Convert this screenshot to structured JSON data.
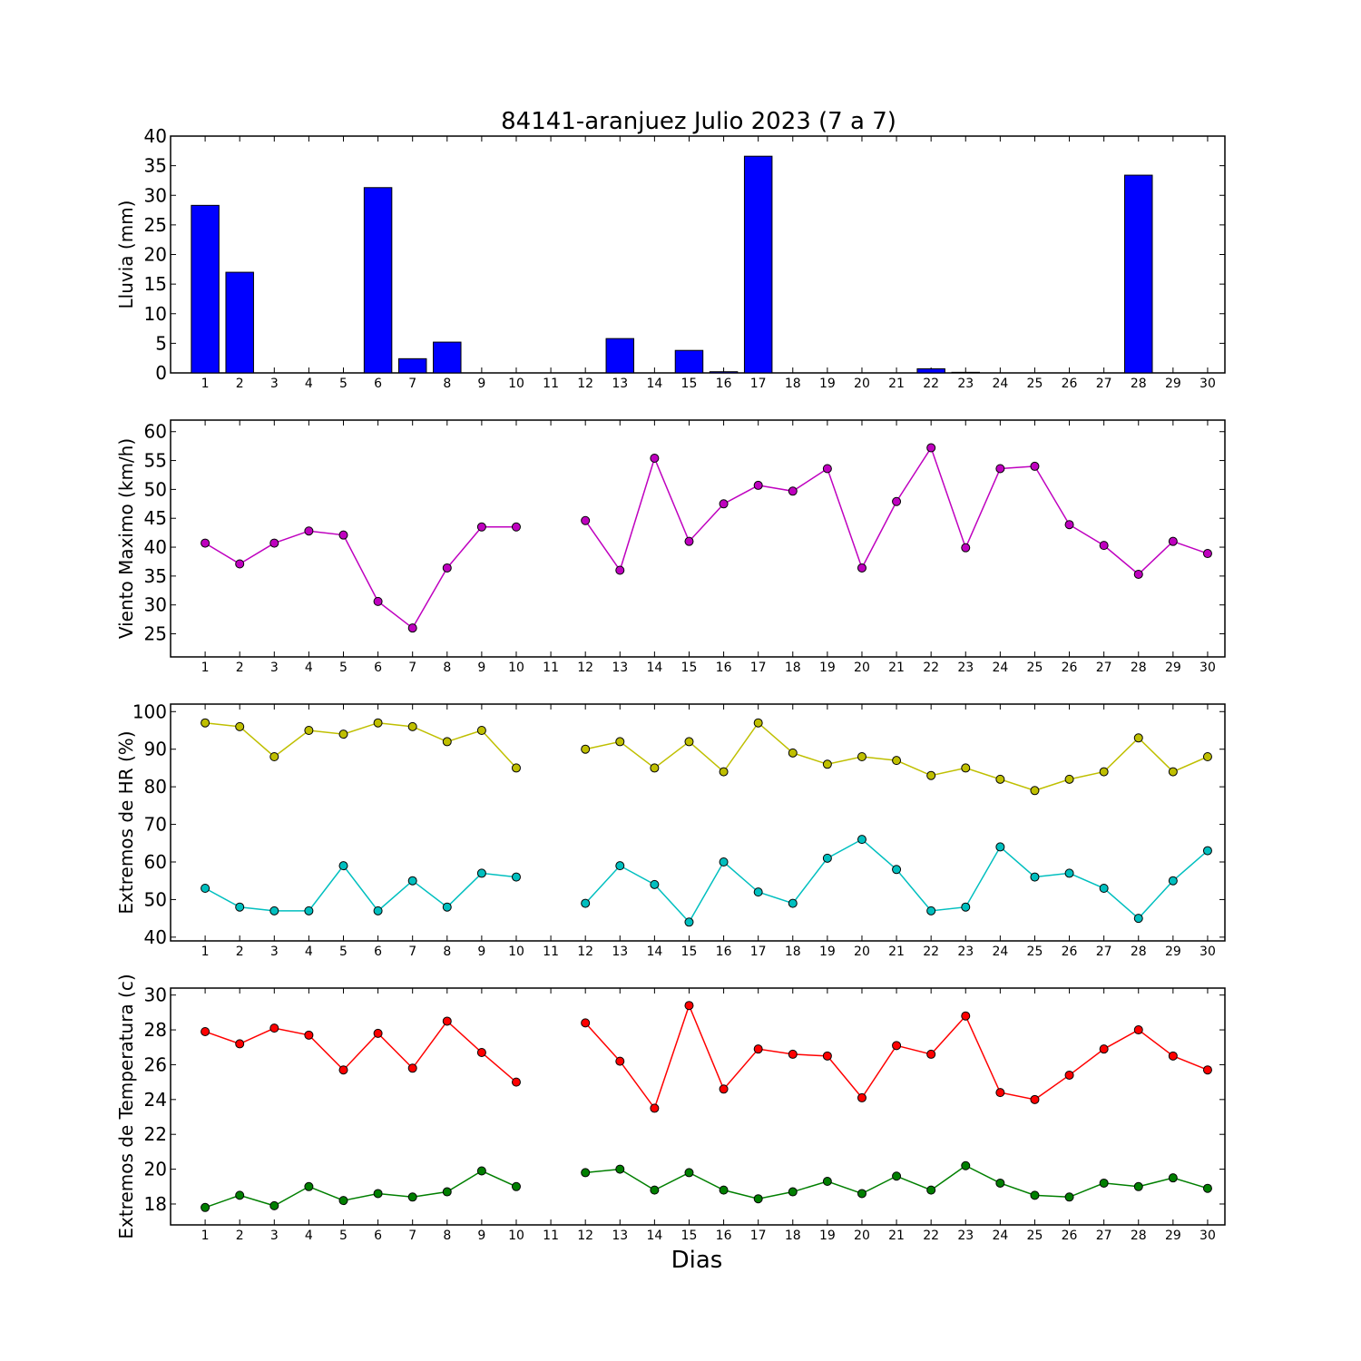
{
  "chart_data": {
    "title": "84141-aranjuez Julio 2023  (7 a 7)",
    "xlabel": "Dias",
    "days": [
      1,
      2,
      3,
      4,
      5,
      6,
      7,
      8,
      9,
      10,
      11,
      12,
      13,
      14,
      15,
      16,
      17,
      18,
      19,
      20,
      21,
      22,
      23,
      24,
      25,
      26,
      27,
      28,
      29,
      30
    ],
    "panels": [
      {
        "type": "bar",
        "ylabel": "Lluvia (mm)",
        "ylim": [
          0,
          40
        ],
        "yticks": [
          0,
          5,
          10,
          15,
          20,
          25,
          30,
          35,
          40
        ],
        "series": [
          {
            "color": "#0000ff",
            "values": [
              28.3,
              17.0,
              0,
              0,
              0,
              31.3,
              2.4,
              5.2,
              0,
              0,
              0,
              0,
              5.8,
              0,
              3.8,
              0.2,
              36.6,
              0,
              0,
              0,
              0,
              0.7,
              0.1,
              0,
              0,
              0,
              0,
              33.4,
              0,
              0
            ]
          }
        ]
      },
      {
        "type": "line",
        "ylabel": "Viento Maximo (km/h)",
        "ylim": [
          21,
          62
        ],
        "yticks": [
          25,
          30,
          35,
          40,
          45,
          50,
          55,
          60
        ],
        "series": [
          {
            "color": "#bf00bf",
            "values": [
              40.7,
              37.1,
              40.7,
              42.8,
              42.1,
              30.6,
              26.0,
              36.4,
              43.5,
              43.5,
              null,
              44.6,
              36.0,
              55.4,
              41.0,
              47.5,
              50.7,
              49.7,
              53.6,
              36.4,
              47.9,
              57.2,
              39.9,
              53.6,
              54.0,
              43.9,
              40.3,
              35.3,
              41.0,
              38.9
            ]
          }
        ]
      },
      {
        "type": "line",
        "ylabel": "Extremos de HR (%)",
        "ylim": [
          39,
          102
        ],
        "yticks": [
          40,
          50,
          60,
          70,
          80,
          90,
          100
        ],
        "series": [
          {
            "color": "#bfbf00",
            "values": [
              97,
              96,
              88,
              95,
              94,
              97,
              96,
              92,
              95,
              85,
              null,
              90,
              92,
              85,
              92,
              84,
              97,
              89,
              86,
              88,
              87,
              83,
              85,
              82,
              79,
              82,
              84,
              93,
              84,
              88
            ]
          },
          {
            "color": "#00bfbf",
            "values": [
              53,
              48,
              47,
              47,
              59,
              47,
              55,
              48,
              57,
              56,
              null,
              49,
              59,
              54,
              44,
              60,
              52,
              49,
              61,
              66,
              58,
              47,
              48,
              64,
              56,
              57,
              53,
              45,
              55,
              63
            ]
          }
        ]
      },
      {
        "type": "line",
        "ylabel": "Extremos de Temperatura (c)",
        "ylim": [
          16.8,
          30.4
        ],
        "yticks": [
          18,
          20,
          22,
          24,
          26,
          28,
          30
        ],
        "series": [
          {
            "color": "#ff0000",
            "values": [
              27.9,
              27.2,
              28.1,
              27.7,
              25.7,
              27.8,
              25.8,
              28.5,
              26.7,
              25.0,
              null,
              28.4,
              26.2,
              23.5,
              29.4,
              24.6,
              26.9,
              26.6,
              26.5,
              24.1,
              27.1,
              26.6,
              28.8,
              24.4,
              24.0,
              25.4,
              26.9,
              28.0,
              26.5,
              25.7
            ]
          },
          {
            "color": "#007f00",
            "values": [
              17.8,
              18.5,
              17.9,
              19.0,
              18.2,
              18.6,
              18.4,
              18.7,
              19.9,
              19.0,
              null,
              19.8,
              20.0,
              18.8,
              19.8,
              18.8,
              18.3,
              18.7,
              19.3,
              18.6,
              19.6,
              18.8,
              20.2,
              19.2,
              18.5,
              18.4,
              19.2,
              19.0,
              19.5,
              18.9
            ]
          }
        ]
      }
    ]
  }
}
